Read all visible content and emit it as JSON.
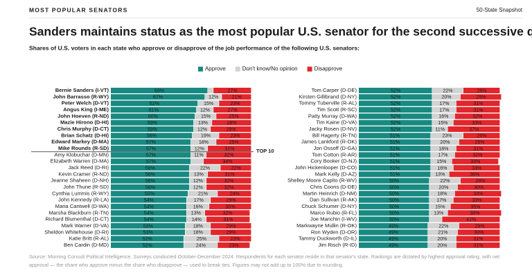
{
  "header": {
    "kicker": "MOST POPULAR SENATORS",
    "tag": "50-State Snapshot",
    "title": "Sanders maintains status as the most popular U.S. senator for the second successive quarter",
    "subtitle": "Shares of U.S. voters in each state who approve or disapprove of the job performance of the following U.S. senators:"
  },
  "chart_data": {
    "type": "stacked-bar",
    "annotation": "TOP 10",
    "xlim": [
      0,
      100
    ],
    "categories": [
      "Bernie Sanders (I-VT)",
      "John Barrasso (R-WY)",
      "Peter Welch (D-VT)",
      "Angus King (I-ME)",
      "John Hoeven (R-ND)",
      "Mazie Hirono (D-HI)",
      "Chris Murphy (D-CT)",
      "Brian Schatz (D-HI)",
      "Edward Markey (D-MA)",
      "Mike Rounds (R-SD)",
      "Amy Klobuchar (D-MN)",
      "Elizabeth Warren (D-MA)",
      "Jack Reed (D-RI)",
      "Kevin Cramer (R-ND)",
      "Jeanne Shaheen (D-NH)",
      "John Thune (R-SD)",
      "Cynthia Lummis (R-WY)",
      "John Kennedy (R-LA)",
      "Maria Cantwell (D-WA)",
      "Marsha Blackburn (R-TN)",
      "Richard Blumenthal (D-CT)",
      "Mark Warner (D-VA)",
      "Sheldon Whitehouse (D-RI)",
      "Katie Britt (R-AL)",
      "Ben Cardin (D-MD)",
      "Tom Carper (D-DE)",
      "Kirsten Gillibrand (D-NY)",
      "Tommy Tuberville (R-AL)",
      "Tim Scott (R-SC)",
      "Patty Murray (D-WA)",
      "Tim Kaine (D-VA)",
      "Jacky Rosen (D-NV)",
      "Bill Hagerty (R-TN)",
      "James Lankford (R-OK)",
      "Jon Ossoff (D-GA)",
      "Tom Cotton (R-AR)",
      "Cory Booker (D-NJ)",
      "John Hickenlooper (D-CO)",
      "Mark Kelly (D-AZ)",
      "Shelley Moore Capito (R-WV)",
      "Chris Coons (D-DE)",
      "Martin Heinrich (D-NM)",
      "Dan Sullivan (R-AK)",
      "Chuck Schumer (D-NY)",
      "Marco Rubio (R-FL)",
      "Joe Manchin (I-WV)",
      "Markwayne Mullin (R-OK)",
      "Ron Wyden (D-OR)",
      "Tammy Duckworth (D-IL)",
      "Jim Risch (R-ID)"
    ],
    "series": [
      {
        "name": "Approve",
        "color": "#188a82",
        "values": [
          69,
          67,
          62,
          61,
          60,
          59,
          59,
          58,
          57,
          57,
          57,
          57,
          56,
          56,
          56,
          56,
          55,
          54,
          54,
          54,
          54,
          53,
          53,
          52,
          52,
          52,
          52,
          52,
          52,
          52,
          52,
          52,
          51,
          51,
          51,
          51,
          51,
          51,
          51,
          50,
          50,
          50,
          50,
          50,
          50,
          50,
          49,
          49,
          49,
          49
        ],
        "value_labels": [
          "69%",
          "67%",
          "62%",
          "61%",
          "60%",
          "59%",
          "59%",
          "58%",
          "57%",
          "57%",
          "57%",
          "57%",
          "56%",
          "56%",
          "56%",
          "56%",
          "55%",
          "54%",
          "54%",
          "54%",
          "54%",
          "53%",
          "53%",
          "52%",
          "52%",
          "52%",
          "52%",
          "52%",
          "52%",
          "52%",
          "52%",
          "52%",
          "51%",
          "51%",
          "51%",
          "51%",
          "51%",
          "51%",
          "51%",
          "50%",
          "50%",
          "50%",
          "50%",
          "50%",
          "50%",
          "50%",
          "49%",
          "49%",
          "49%",
          "49%"
        ]
      },
      {
        "name": "Don't know/No opinion",
        "color": "#d3d3d3",
        "values": [
          4,
          12,
          15,
          12,
          15,
          13,
          12,
          19,
          18,
          12,
          11,
          9,
          22,
          13,
          12,
          12,
          21,
          17,
          16,
          13,
          14,
          18,
          18,
          25,
          24,
          22,
          20,
          17,
          17,
          16,
          15,
          11,
          23,
          20,
          18,
          17,
          15,
          16,
          13,
          22,
          20,
          18,
          17,
          15,
          13,
          9,
          22,
          21,
          20,
          20
        ],
        "value_labels": [
          null,
          "12%",
          "15%",
          "12%",
          "15%",
          "13%",
          "12%",
          "19%",
          "18%",
          "12%",
          "11%",
          null,
          "22%",
          "13%",
          "12%",
          "12%",
          "21%",
          "17%",
          "16%",
          "13%",
          "14%",
          "18%",
          "18%",
          "25%",
          "24%",
          "22%",
          "20%",
          "17%",
          "17%",
          "16%",
          "15%",
          "11%",
          "23%",
          "20%",
          "18%",
          "17%",
          "15%",
          "16%",
          "13%",
          "22%",
          "20%",
          "18%",
          "17%",
          "15%",
          "13%",
          null,
          "22%",
          "21%",
          "20%",
          "20%"
        ]
      },
      {
        "name": "Disapprove",
        "color": "#e1262c",
        "values": [
          27,
          21,
          23,
          27,
          25,
          28,
          29,
          23,
          25,
          31,
          32,
          34,
          22,
          31,
          32,
          32,
          24,
          29,
          30,
          32,
          31,
          29,
          29,
          23,
          23,
          26,
          29,
          31,
          31,
          32,
          33,
          37,
          26,
          29,
          31,
          32,
          33,
          33,
          36,
          28,
          30,
          33,
          33,
          35,
          38,
          41,
          29,
          30,
          31,
          31
        ],
        "value_labels": [
          "27%",
          "21%",
          "23%",
          "27%",
          "25%",
          "28%",
          "29%",
          "23%",
          "25%",
          "31%",
          "32%",
          "34%",
          "22%",
          "31%",
          "32%",
          "32%",
          "24%",
          "29%",
          "30%",
          "32%",
          "31%",
          "29%",
          "29%",
          "23%",
          "23%",
          "26%",
          "29%",
          "31%",
          "31%",
          "32%",
          "33%",
          "37%",
          "26%",
          "29%",
          "31%",
          "32%",
          "33%",
          "33%",
          "36%",
          "28%",
          "30%",
          "33%",
          "33%",
          "35%",
          "38%",
          "41%",
          "29%",
          "30%",
          "31%",
          "31%"
        ]
      }
    ]
  },
  "footer": {
    "source": "Source: Morning Consult Political Intelligence. Surveys conducted October-December 2024. Respondents for each senator reside in that senator's state. Rankings are dictated by highest approval rating, with net approval — the share who approve minus the share who disapprove — used to break ties. Figures may not add up to 100% due to rounding."
  }
}
